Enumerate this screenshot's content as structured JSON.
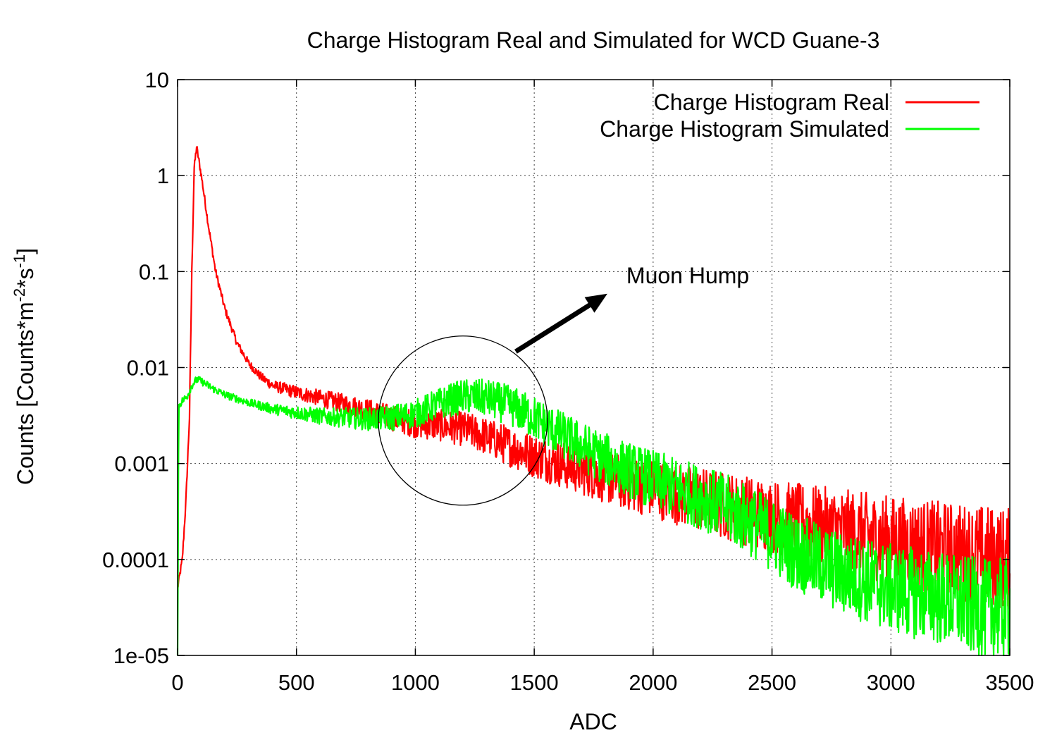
{
  "chart_data": {
    "type": "line",
    "title": "Charge Histogram Real and Simulated for WCD Guane-3",
    "xlabel": "ADC",
    "ylabel": "Counts [Counts*m",
    "ylabel_sup1": "-2",
    "ylabel_mid": "*s",
    "ylabel_sup2": "-1",
    "ylabel_end": "]",
    "xlim": [
      0,
      3500
    ],
    "ylim": [
      1e-05,
      10
    ],
    "yscale": "log",
    "grid": true,
    "legend_position": "top-right",
    "x_ticks": [
      "0",
      "500",
      "1000",
      "1500",
      "2000",
      "2500",
      "3000",
      "3500"
    ],
    "x_tick_values": [
      0,
      500,
      1000,
      1500,
      2000,
      2500,
      3000,
      3500
    ],
    "y_ticks": [
      "10",
      "1",
      "0.1",
      "0.01",
      "0.001",
      "0.0001",
      "1e-05"
    ],
    "y_tick_values": [
      10,
      1,
      0.1,
      0.01,
      0.001,
      0.0001,
      1e-05
    ],
    "series": [
      {
        "name": "Charge Histogram Real",
        "color": "#ff0000",
        "x": [
          0,
          20,
          35,
          50,
          60,
          70,
          80,
          100,
          130,
          160,
          200,
          250,
          300,
          350,
          400,
          500,
          600,
          700,
          800,
          900,
          1000,
          1100,
          1200,
          1300,
          1400,
          1500,
          1600,
          1700,
          1800,
          1900,
          2000,
          2200,
          2400,
          2600,
          2800,
          3000,
          3200,
          3400,
          3500
        ],
        "y": [
          5e-05,
          0.0001,
          0.0004,
          0.003,
          0.1,
          1.2,
          2.0,
          1.0,
          0.3,
          0.1,
          0.04,
          0.018,
          0.011,
          0.008,
          0.0065,
          0.0055,
          0.0048,
          0.0042,
          0.0036,
          0.003,
          0.0026,
          0.0025,
          0.0023,
          0.0019,
          0.0015,
          0.0012,
          0.001,
          0.00085,
          0.00072,
          0.00062,
          0.00055,
          0.00042,
          0.00032,
          0.00025,
          0.0002,
          0.00016,
          0.00013,
          0.00011,
          0.0001
        ]
      },
      {
        "name": "Charge Histogram Simulated",
        "color": "#00ff00",
        "x": [
          0,
          5,
          20,
          40,
          60,
          80,
          100,
          150,
          200,
          300,
          400,
          500,
          600,
          700,
          800,
          900,
          1000,
          1100,
          1200,
          1300,
          1400,
          1500,
          1600,
          1700,
          1800,
          1900,
          2000,
          2100,
          2200,
          2300,
          2400,
          2500,
          2600,
          2700,
          2800,
          2900,
          3000,
          3200,
          3400,
          3500
        ],
        "y": [
          1e-05,
          0.004,
          0.0045,
          0.005,
          0.0065,
          0.0075,
          0.0072,
          0.006,
          0.0052,
          0.0043,
          0.0037,
          0.0034,
          0.0031,
          0.003,
          0.0029,
          0.003,
          0.0033,
          0.0042,
          0.005,
          0.0048,
          0.004,
          0.003,
          0.0021,
          0.0015,
          0.0011,
          0.00085,
          0.00068,
          0.00055,
          0.00045,
          0.00035,
          0.00026,
          0.00018,
          0.00012,
          9e-05,
          7e-05,
          6e-05,
          5e-05,
          4e-05,
          3e-05,
          3e-05
        ]
      }
    ],
    "annotations": [
      {
        "text": "Muon Hump",
        "shape": "circle-and-arrow",
        "center_x": 1200,
        "center_y": 0.0028
      }
    ]
  }
}
